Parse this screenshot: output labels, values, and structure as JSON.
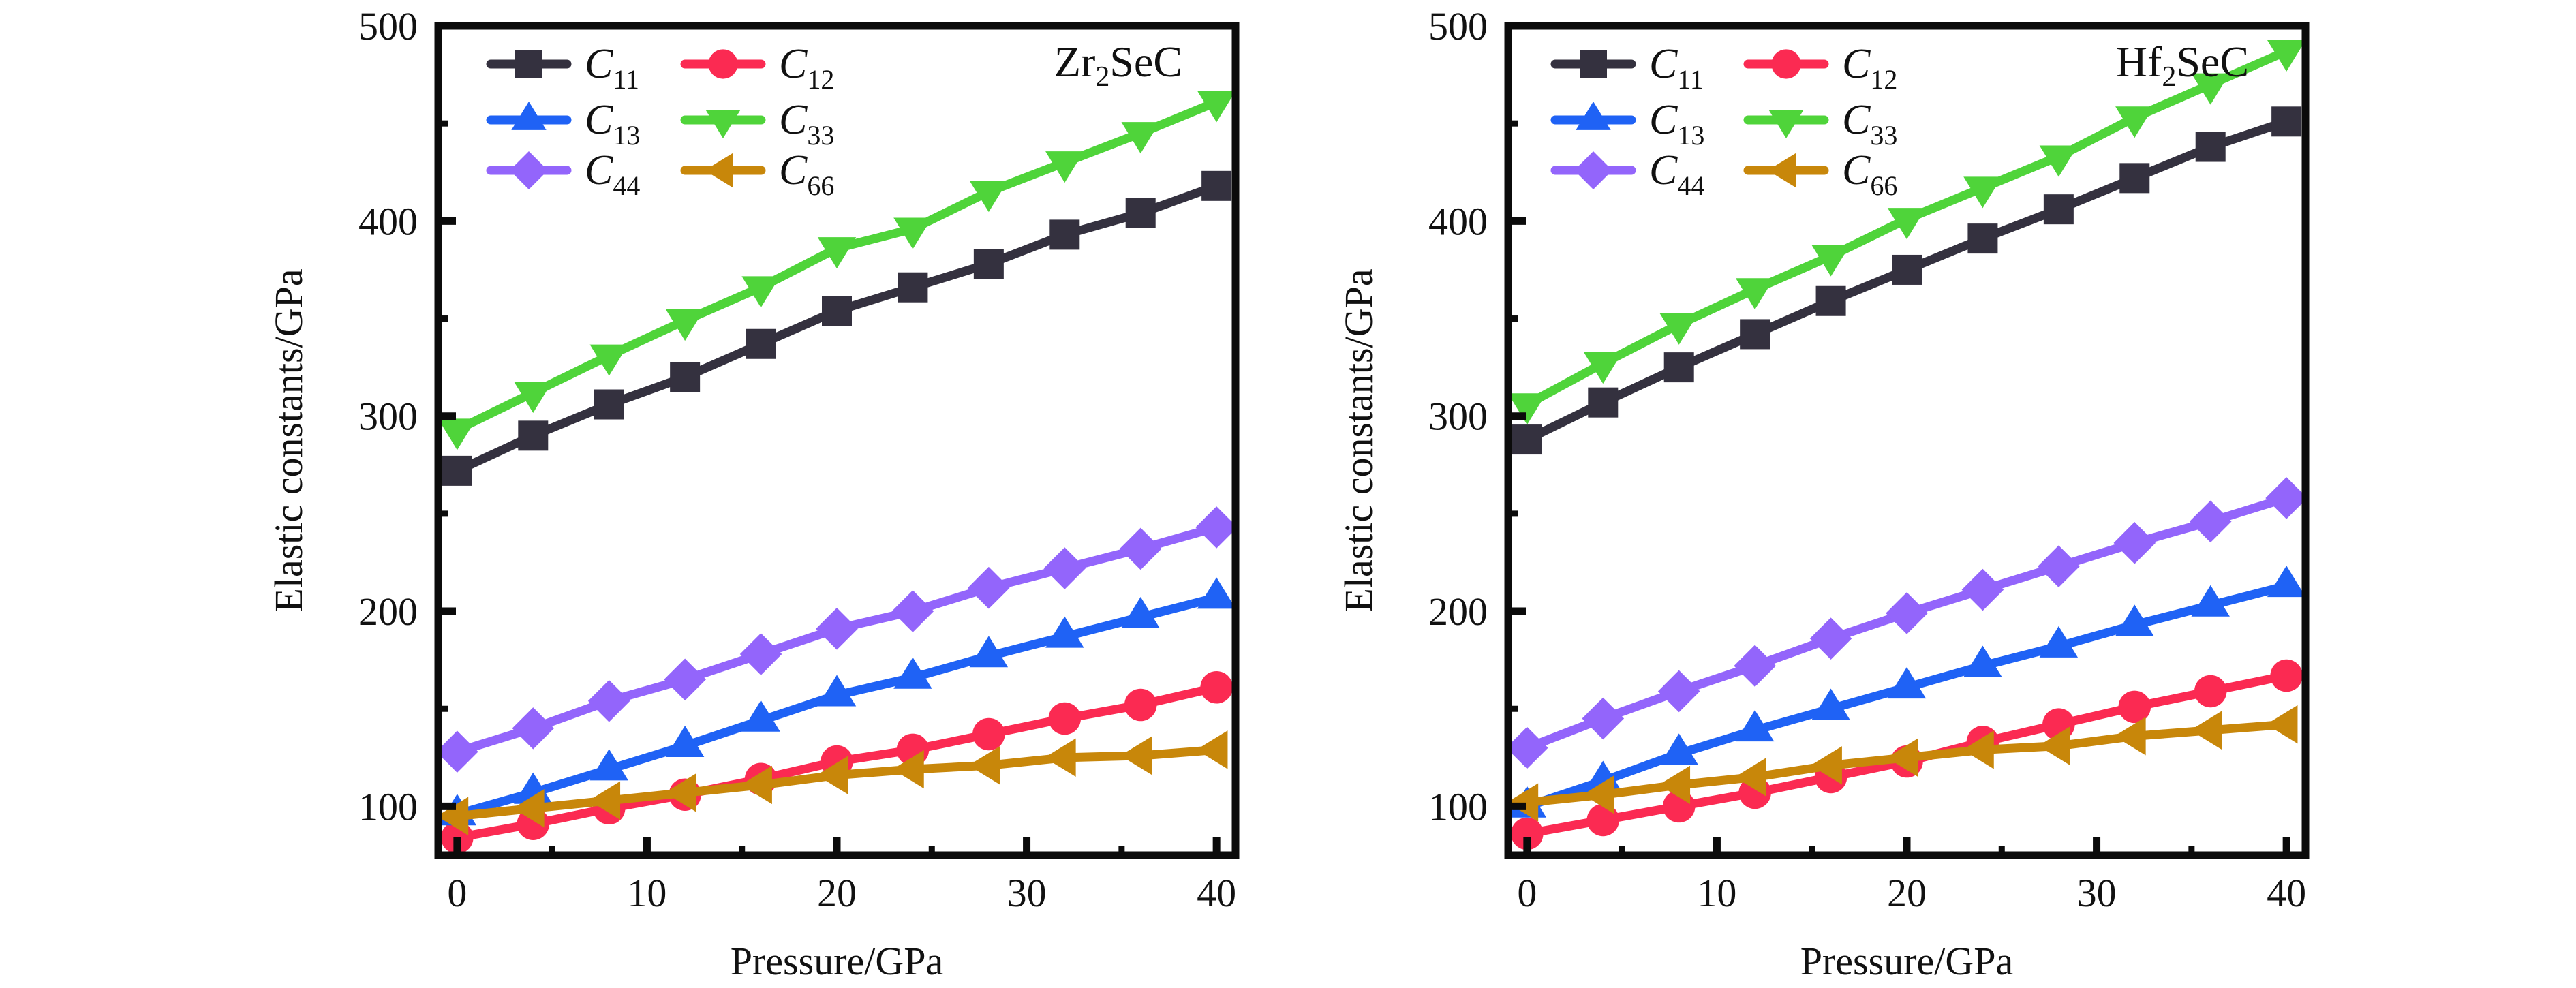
{
  "chart_data": [
    {
      "type": "line",
      "title": "Zr2SeC",
      "title_parts": {
        "base": "Zr",
        "sub": "2",
        "rest": "SeC"
      },
      "xlabel": "Pressure/GPa",
      "ylabel": "Elastic constants/GPa",
      "xlim": [
        -1,
        41
      ],
      "ylim": [
        75,
        500
      ],
      "xticks": [
        0,
        10,
        20,
        30,
        40
      ],
      "xminor": [
        5,
        15,
        25,
        35
      ],
      "yticks": [
        100,
        200,
        300,
        400,
        500
      ],
      "yminor": [
        150,
        250,
        350,
        450
      ],
      "legend_position": "top-left",
      "x": [
        0,
        4,
        8,
        12,
        16,
        20,
        24,
        28,
        32,
        36,
        40
      ],
      "series": [
        {
          "name": "C11",
          "base": "C",
          "sub": "11",
          "marker": "square",
          "color": "#34313f",
          "values": [
            272,
            290,
            306,
            320,
            337,
            354,
            366,
            378,
            393,
            404,
            418
          ]
        },
        {
          "name": "C12",
          "base": "C",
          "sub": "12",
          "marker": "circle",
          "color": "#fb2a52",
          "values": [
            84,
            91,
            99,
            106,
            114,
            123,
            129,
            137,
            145,
            152,
            161
          ]
        },
        {
          "name": "C13",
          "base": "C",
          "sub": "13",
          "marker": "triangle-up",
          "color": "#1f62f5",
          "values": [
            96,
            107,
            119,
            131,
            144,
            157,
            166,
            177,
            187,
            197,
            207
          ]
        },
        {
          "name": "C33",
          "base": "C",
          "sub": "33",
          "marker": "triangle-down",
          "color": "#4fd43a",
          "values": [
            293,
            312,
            331,
            349,
            366,
            386,
            396,
            415,
            430,
            445,
            461
          ]
        },
        {
          "name": "C44",
          "base": "C",
          "sub": "44",
          "marker": "diamond",
          "color": "#9365fb",
          "values": [
            128,
            140,
            154,
            165,
            178,
            191,
            200,
            212,
            222,
            232,
            243
          ]
        },
        {
          "name": "C66",
          "base": "C",
          "sub": "66",
          "marker": "triangle-left",
          "color": "#c8870a",
          "values": [
            95,
            99,
            103,
            107,
            111,
            116,
            119,
            121,
            125,
            126,
            129
          ]
        }
      ]
    },
    {
      "type": "line",
      "title": "Hf2SeC",
      "title_parts": {
        "base": "Hf",
        "sub": "2",
        "rest": "SeC"
      },
      "xlabel": "Pressure/GPa",
      "ylabel": "Elastic constants/GPa",
      "xlim": [
        -1,
        41
      ],
      "ylim": [
        75,
        500
      ],
      "xticks": [
        0,
        10,
        20,
        30,
        40
      ],
      "xminor": [
        5,
        15,
        25,
        35
      ],
      "yticks": [
        100,
        200,
        300,
        400,
        500
      ],
      "yminor": [
        150,
        250,
        350,
        450
      ],
      "legend_position": "top-left",
      "x": [
        0,
        4,
        8,
        12,
        16,
        20,
        24,
        28,
        32,
        36,
        40
      ],
      "series": [
        {
          "name": "C11",
          "base": "C",
          "sub": "11",
          "marker": "square",
          "color": "#34313f",
          "values": [
            288,
            307,
            325,
            342,
            359,
            375,
            391,
            406,
            422,
            438,
            451
          ]
        },
        {
          "name": "C12",
          "base": "C",
          "sub": "12",
          "marker": "circle",
          "color": "#fb2a52",
          "values": [
            86,
            93,
            100,
            107,
            115,
            123,
            133,
            142,
            151,
            159,
            167
          ]
        },
        {
          "name": "C13",
          "base": "C",
          "sub": "13",
          "marker": "triangle-up",
          "color": "#1f62f5",
          "values": [
            100,
            113,
            127,
            139,
            150,
            161,
            172,
            182,
            193,
            203,
            213
          ]
        },
        {
          "name": "C33",
          "base": "C",
          "sub": "33",
          "marker": "triangle-down",
          "color": "#4fd43a",
          "values": [
            306,
            327,
            347,
            365,
            382,
            401,
            417,
            433,
            453,
            470,
            487
          ]
        },
        {
          "name": "C44",
          "base": "C",
          "sub": "44",
          "marker": "diamond",
          "color": "#9365fb",
          "values": [
            130,
            145,
            159,
            172,
            186,
            199,
            211,
            223,
            235,
            246,
            258
          ]
        },
        {
          "name": "C66",
          "base": "C",
          "sub": "66",
          "marker": "triangle-left",
          "color": "#c8870a",
          "values": [
            102,
            106,
            111,
            115,
            121,
            125,
            129,
            131,
            136,
            139,
            142
          ]
        }
      ]
    }
  ],
  "legend_order": [
    "C11",
    "C12",
    "C13",
    "C33",
    "C44",
    "C66"
  ]
}
